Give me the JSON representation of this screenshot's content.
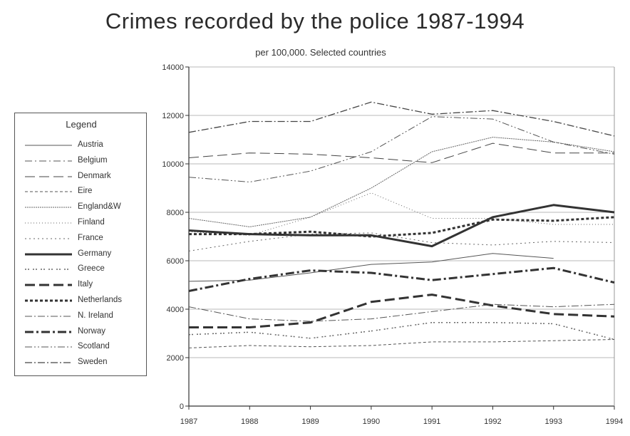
{
  "chart_data": {
    "type": "line",
    "title": "Crimes recorded by the police 1987-1994",
    "subtitle": "per 100,000. Selected countries",
    "x": [
      "1987",
      "1988",
      "1989",
      "1990",
      "1991",
      "1992",
      "1993",
      "1994"
    ],
    "ylim": [
      0,
      14000
    ],
    "yticks": [
      "0",
      "2000",
      "4000",
      "6000",
      "8000",
      "10000",
      "12000",
      "14000"
    ],
    "grid": "horizontal",
    "legend_title": "Legend",
    "legend_position": "left",
    "series": [
      {
        "name": "Austria",
        "values": [
          5150,
          5200,
          5500,
          5850,
          5950,
          6300,
          6100,
          null
        ],
        "color": "#555555",
        "width": 1,
        "dash": ""
      },
      {
        "name": "Belgium",
        "values": [
          null,
          null,
          null,
          null,
          null,
          null,
          null,
          null
        ],
        "color": "#555555",
        "width": 1,
        "dash": "10,4,2,4"
      },
      {
        "name": "Denmark",
        "values": [
          10250,
          10450,
          10400,
          10250,
          10050,
          10850,
          10450,
          10450
        ],
        "color": "#444444",
        "width": 1,
        "dash": "14,6"
      },
      {
        "name": "Eire",
        "values": [
          2400,
          2500,
          2450,
          2500,
          2650,
          2650,
          2700,
          2750
        ],
        "color": "#555555",
        "width": 1,
        "dash": "4,3"
      },
      {
        "name": "England&W",
        "values": [
          7750,
          7400,
          7800,
          9000,
          10500,
          11100,
          10900,
          10500
        ],
        "color": "#666666",
        "width": 1,
        "dash": "2,1"
      },
      {
        "name": "Finland",
        "values": [
          7200,
          7050,
          7800,
          8800,
          7750,
          7750,
          7500,
          7500
        ],
        "color": "#666666",
        "width": 1,
        "dash": "1,3"
      },
      {
        "name": "France",
        "values": [
          6400,
          6800,
          7100,
          7150,
          6750,
          6650,
          6800,
          6750
        ],
        "color": "#666666",
        "width": 1,
        "dash": "2,4"
      },
      {
        "name": "Germany",
        "values": [
          7250,
          7100,
          7050,
          7050,
          6600,
          7800,
          8300,
          8000
        ],
        "color": "#333333",
        "width": 3,
        "dash": ""
      },
      {
        "name": "Greece",
        "values": [
          2950,
          3050,
          2800,
          3100,
          3450,
          3450,
          3400,
          2750
        ],
        "color": "#666666",
        "width": 1.5,
        "dash": "2,2,2,5"
      },
      {
        "name": "Italy",
        "values": [
          3250,
          3250,
          3450,
          4300,
          4600,
          4150,
          3800,
          3700
        ],
        "color": "#333333",
        "width": 3,
        "dash": "14,6"
      },
      {
        "name": "Netherlands",
        "values": [
          7100,
          7100,
          7200,
          7000,
          7150,
          7700,
          7650,
          7800
        ],
        "color": "#333333",
        "width": 3,
        "dash": "4,3"
      },
      {
        "name": "N. Ireland",
        "values": [
          4100,
          3600,
          3500,
          3600,
          3900,
          4200,
          4100,
          4200
        ],
        "color": "#555555",
        "width": 1,
        "dash": "10,3,2,3"
      },
      {
        "name": "Norway",
        "values": [
          4750,
          5250,
          5600,
          5500,
          5200,
          5450,
          5700,
          5100
        ],
        "color": "#333333",
        "width": 3,
        "dash": "12,4,3,4"
      },
      {
        "name": "Scotland",
        "values": [
          9450,
          9250,
          9700,
          10500,
          11950,
          11850,
          10900,
          10400
        ],
        "color": "#555555",
        "width": 1,
        "dash": "10,3,2,3,2,3"
      },
      {
        "name": "Sweden",
        "values": [
          11300,
          11750,
          11750,
          12550,
          12050,
          12200,
          11750,
          11150
        ],
        "color": "#444444",
        "width": 1.3,
        "dash": "10,3,2,3"
      }
    ]
  }
}
